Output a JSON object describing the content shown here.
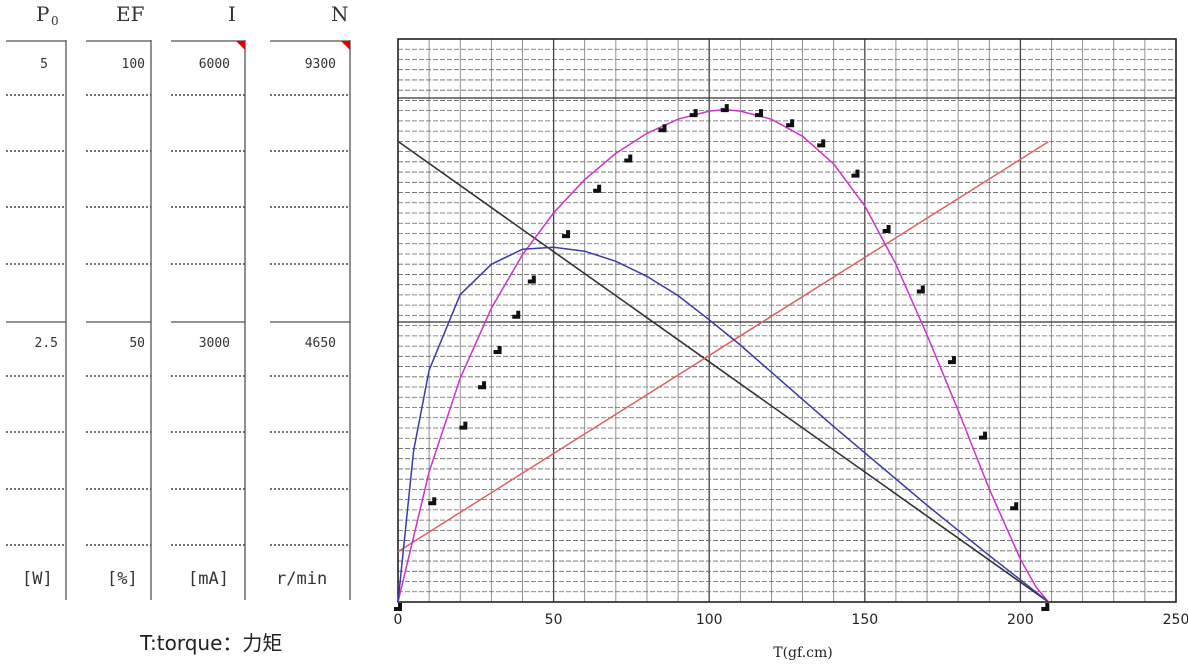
{
  "scales": {
    "headers": [
      {
        "main": "P",
        "sub": "0"
      },
      {
        "main": "EF",
        "sub": ""
      },
      {
        "main": "I",
        "sub": ""
      },
      {
        "main": "N",
        "sub": ""
      }
    ],
    "top_values": [
      "5",
      "100",
      "6000",
      "9300"
    ],
    "mid_values": [
      "2.5",
      "50",
      "3000",
      "4650"
    ],
    "units": [
      "[W]",
      "[%]",
      "[mA]",
      "r/min"
    ]
  },
  "footnote": "T:torque：力矩",
  "chart_data": {
    "type": "line",
    "xlabel": "T(gf.cm)",
    "ylabel": "",
    "title": "",
    "xlim": [
      0,
      250
    ],
    "xticks": [
      0,
      50,
      100,
      150,
      200,
      250
    ],
    "ylim_by_axis": {
      "P0": [
        0,
        5
      ],
      "EF": [
        0,
        100
      ],
      "I": [
        0,
        6000
      ],
      "N": [
        0,
        9300
      ]
    },
    "grid": true,
    "colors": {
      "N": "#333333",
      "I": "#e06060",
      "EF": "#cc33cc",
      "P0": "#3a3aaa"
    },
    "series": [
      {
        "key": "N",
        "axis": "N",
        "x": [
          0,
          209
        ],
        "y": [
          8500,
          0
        ]
      },
      {
        "key": "I",
        "axis": "I",
        "x": [
          0,
          209
        ],
        "y": [
          600,
          5480
        ]
      },
      {
        "key": "EF",
        "axis": "EF",
        "x": [
          0,
          10,
          20,
          30,
          40,
          50,
          60,
          70,
          80,
          90,
          100,
          105,
          110,
          120,
          130,
          140,
          150,
          160,
          170,
          180,
          190,
          200,
          205,
          209
        ],
        "y": [
          0,
          25.8,
          44.4,
          58.3,
          68.9,
          77.2,
          83.8,
          89.0,
          93.0,
          95.8,
          97.4,
          97.7,
          97.4,
          95.8,
          92.4,
          86.9,
          78.6,
          67.0,
          53.0,
          38.0,
          22.4,
          8.5,
          3.0,
          0
        ]
      },
      {
        "key": "P0",
        "axis": "P0",
        "x": [
          0,
          5,
          10,
          20,
          30,
          40,
          50,
          60,
          70,
          80,
          90,
          100,
          110,
          120,
          130,
          140,
          150,
          160,
          170,
          180,
          190,
          200,
          209
        ],
        "y": [
          0,
          1.5,
          2.3,
          3.05,
          3.35,
          3.5,
          3.52,
          3.48,
          3.38,
          3.23,
          3.04,
          2.8,
          2.55,
          2.28,
          2.01,
          1.74,
          1.48,
          1.22,
          0.96,
          0.71,
          0.46,
          0.22,
          0
        ]
      },
      {
        "key": "EF_points",
        "axis": "EF",
        "x": [
          0,
          11,
          21,
          27,
          32,
          38,
          43,
          54,
          64,
          74,
          85,
          95,
          105,
          116,
          126,
          136,
          147,
          157,
          168,
          178,
          188,
          198,
          208
        ],
        "y": [
          -1,
          20,
          35,
          43,
          50,
          57,
          64,
          73,
          82,
          88,
          94,
          97,
          98,
          97,
          95,
          91,
          85,
          74,
          62,
          48,
          33,
          19,
          -1
        ]
      }
    ]
  }
}
